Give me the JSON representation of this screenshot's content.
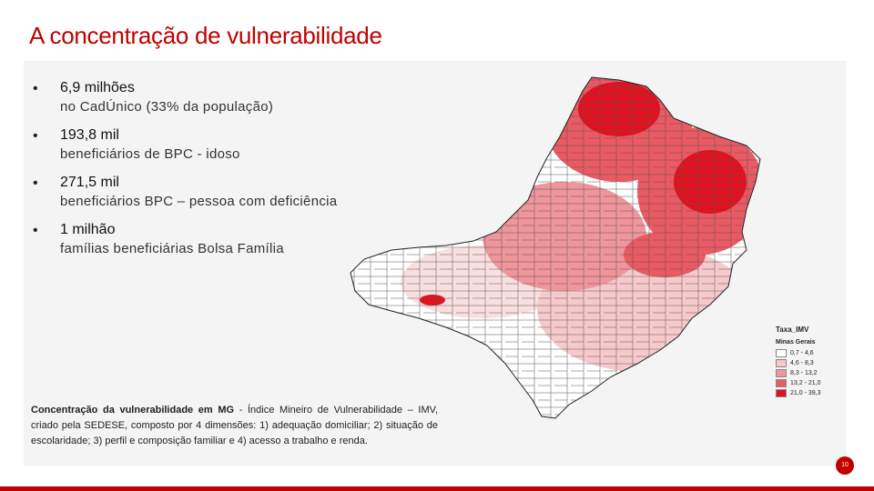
{
  "title": "A concentração de vulnerabilidade",
  "bullets": [
    {
      "head": "6,9 milhões",
      "sub": "no CadÚnico (33% da população)"
    },
    {
      "head": "193,8 mil",
      "sub": "beneficiários de BPC - idoso"
    },
    {
      "head": "271,5 mil",
      "sub": "beneficiários BPC – pessoa com deficiência"
    },
    {
      "head": "1 milhão",
      "sub": "famílias beneficiárias Bolsa Família"
    }
  ],
  "caption": {
    "bold": "Concentração da vulnerabilidade em MG",
    "text": " - Índice Mineiro de Vulnerabilidade – IMV, criado pela SEDESE, composto por 4 dimensões: 1) adequação domiciliar; 2) situação de escolaridade; 3) perfil e composição familiar e 4) acesso a trabalho e renda."
  },
  "legend": {
    "title": "Taxa_IMV",
    "subtitle": "Minas Gerais",
    "items": [
      {
        "label": "0,7 - 4,6",
        "color": "#ffffff"
      },
      {
        "label": "4,6 - 8,3",
        "color": "#f7c9cc"
      },
      {
        "label": "8,3 - 13,2",
        "color": "#f0959a"
      },
      {
        "label": "13,2 - 21,0",
        "color": "#ea5a63"
      },
      {
        "label": "21,0 - 39,3",
        "color": "#e0121f"
      }
    ]
  },
  "page_number": "10",
  "colors": {
    "accent": "#c00000"
  }
}
